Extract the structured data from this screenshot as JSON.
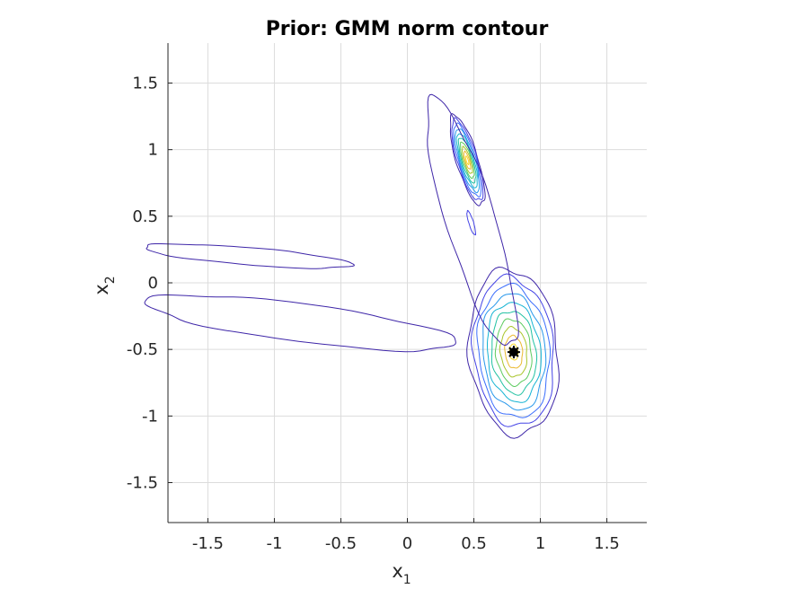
{
  "chart_data": {
    "type": "contour",
    "title": "Prior: GMM norm contour",
    "xlabel": "x",
    "xlabel_sub": "1",
    "ylabel": "x",
    "ylabel_sub": "2",
    "xlim": [
      -1.8,
      1.8
    ],
    "ylim": [
      -1.8,
      1.8
    ],
    "xticks": [
      -1.5,
      -1,
      -0.5,
      0,
      0.5,
      1,
      1.5
    ],
    "xtick_labels": [
      "-1.5",
      "-1",
      "-0.5",
      "0",
      "0.5",
      "1",
      "1.5"
    ],
    "yticks": [
      -1.5,
      -1,
      -0.5,
      0,
      0.5,
      1,
      1.5
    ],
    "ytick_labels": [
      "-1.5",
      "-1",
      "-0.5",
      "0",
      "0.5",
      "1",
      "1.5"
    ],
    "grid": true,
    "colormap": [
      "#3e26a8",
      "#4443e6",
      "#3b6efc",
      "#2797eb",
      "#16b4d3",
      "#21c1a2",
      "#5ccb5e",
      "#a9c52b",
      "#eab92e",
      "#f9d92a"
    ],
    "components": [
      {
        "center": [
          0.8,
          -0.52
        ],
        "sigma": [
          0.13,
          0.24
        ],
        "rho": -0.12,
        "levels": 10
      },
      {
        "center": [
          0.45,
          0.92
        ],
        "sigma": [
          0.05,
          0.13
        ],
        "rho": -0.75,
        "levels": 10
      },
      {
        "center": [
          0.48,
          0.45
        ],
        "sigma": [
          0.13,
          0.36
        ],
        "rho": -0.82,
        "levels": 2
      },
      {
        "center": [
          -0.8,
          -0.3
        ],
        "sigma": [
          0.45,
          0.08
        ],
        "rho": -0.72,
        "levels": 1
      },
      {
        "center": [
          -1.2,
          0.2
        ],
        "sigma": [
          0.3,
          0.035
        ],
        "rho": -0.7,
        "levels": 1
      }
    ],
    "marker": {
      "x": 0.8,
      "y": -0.52,
      "color": "#000000"
    }
  }
}
